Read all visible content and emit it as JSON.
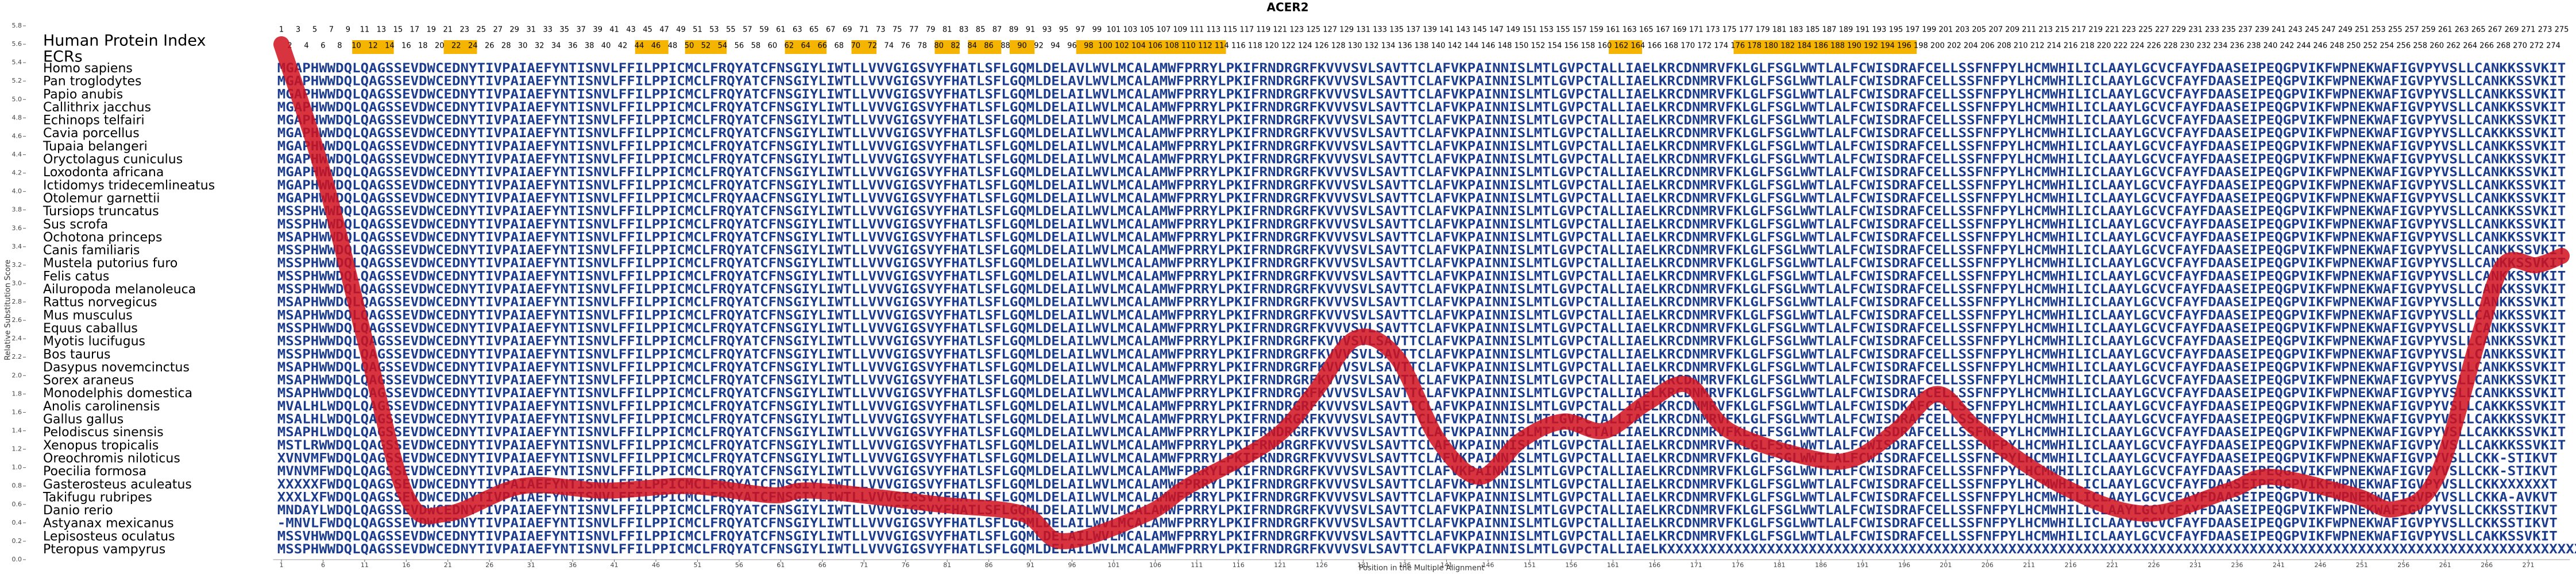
{
  "chart_data": {
    "type": "line",
    "title": "ACER2",
    "xlabel": "Position in the Multiple Alignment",
    "ylabel": "Relative Substitution Score",
    "index_label": "Human Protein Index",
    "ecr_label": "ECRs",
    "color": "#d0101e",
    "sequence_color": "#1c3c8e",
    "ecr_color": "#f5b400",
    "xlim": [
      1,
      275
    ],
    "ylim": [
      0,
      5.8
    ],
    "xticks": [
      1,
      6,
      11,
      16,
      21,
      26,
      31,
      36,
      41,
      46,
      51,
      56,
      61,
      66,
      71,
      76,
      81,
      86,
      91,
      96,
      101,
      106,
      111,
      116,
      121,
      126,
      131,
      136,
      141,
      146,
      151,
      156,
      161,
      166,
      171,
      176,
      181,
      186,
      191,
      196,
      201,
      206,
      211,
      216,
      221,
      226,
      231,
      236,
      241,
      246,
      251,
      256,
      261,
      266,
      271
    ],
    "yticks": [
      {
        "value": 0,
        "label": "0.0"
      },
      0.2,
      0.4,
      0.6,
      0.8,
      {
        "value": 1,
        "label": "1.0"
      },
      1.2,
      1.4,
      1.6,
      1.8,
      {
        "value": 2,
        "label": "2.0"
      },
      2.2,
      2.4,
      2.6,
      2.8,
      {
        "value": 3,
        "label": "3.0"
      },
      3.2,
      3.4,
      3.6,
      3.8,
      {
        "value": 4,
        "label": "4.0"
      },
      4.2,
      4.4,
      4.6,
      4.8,
      {
        "value": 5,
        "label": "5.0"
      },
      5.2,
      5.4,
      5.6,
      5.8
    ],
    "column_numbers": [
      1,
      2,
      3,
      4,
      5,
      6,
      7,
      8,
      9,
      10,
      11,
      12,
      13,
      14,
      15,
      16,
      17,
      18,
      19,
      20,
      21,
      22,
      23,
      24,
      25,
      26,
      27,
      28,
      29,
      30,
      31,
      32,
      33,
      34,
      35,
      36,
      37,
      38,
      39,
      40,
      41,
      42,
      43,
      44,
      45,
      46,
      47,
      48,
      49,
      50,
      51,
      52,
      53,
      54,
      55,
      56,
      57,
      58,
      59,
      60,
      61,
      62,
      63,
      64,
      65,
      66,
      67,
      68,
      69,
      70,
      71,
      72,
      73,
      74,
      75,
      76,
      77,
      78,
      79,
      80,
      81,
      82,
      83,
      84,
      85,
      86,
      87,
      88,
      89,
      90,
      91,
      92,
      93,
      94,
      95,
      96,
      97,
      98,
      99,
      100,
      101,
      102,
      103,
      104,
      105,
      106,
      107,
      108,
      109,
      110,
      111,
      112,
      113,
      114,
      115,
      116,
      117,
      118,
      119,
      120,
      121,
      122,
      123,
      124,
      125,
      126,
      127,
      128,
      129,
      130,
      131,
      132,
      133,
      134,
      135,
      136,
      137,
      138,
      139,
      140,
      141,
      142,
      143,
      144,
      145,
      146,
      147,
      148,
      149,
      150,
      151,
      152,
      153,
      154,
      155,
      156,
      157,
      158,
      159,
      160,
      161,
      162,
      163,
      164,
      165,
      166,
      167,
      168,
      169,
      170,
      171,
      172,
      173,
      174,
      175,
      176,
      177,
      178,
      179,
      180,
      181,
      182,
      183,
      184,
      185,
      186,
      187,
      188,
      189,
      190,
      191,
      192,
      193,
      194,
      195,
      196,
      197,
      198,
      199,
      200,
      201,
      202,
      203,
      204,
      205,
      206,
      207,
      208,
      209,
      210,
      211,
      212,
      213,
      214,
      215,
      216,
      217,
      218,
      219,
      220,
      221,
      222,
      223,
      224,
      225,
      226,
      227,
      228,
      229,
      230,
      231,
      232,
      233,
      234,
      235,
      236,
      237,
      238,
      239,
      240,
      241,
      242,
      243,
      244,
      245,
      246,
      247,
      248,
      249,
      250,
      251,
      252,
      253,
      254,
      255,
      256,
      257,
      258,
      259,
      260,
      261,
      262,
      263,
      264,
      265,
      266,
      267,
      268,
      269,
      270,
      271,
      272,
      273,
      274,
      275
    ],
    "ecrs": [
      {
        "start": 10,
        "end": 14
      },
      {
        "start": 21,
        "end": 24
      },
      {
        "start": 44,
        "end": 47
      },
      {
        "start": 50,
        "end": 54
      },
      {
        "start": 62,
        "end": 66
      },
      {
        "start": 70,
        "end": 72
      },
      {
        "start": 80,
        "end": 82
      },
      {
        "start": 84,
        "end": 87
      },
      {
        "start": 89,
        "end": 91
      },
      {
        "start": 97,
        "end": 114
      },
      {
        "start": 161,
        "end": 164
      },
      {
        "start": 176,
        "end": 197
      }
    ],
    "x": [
      1,
      6,
      11,
      16,
      21,
      30,
      40,
      50,
      60,
      65,
      80,
      90,
      95,
      105,
      110,
      120,
      125,
      130,
      135,
      140,
      145,
      150,
      155,
      160,
      165,
      170,
      175,
      185,
      190,
      195,
      200,
      205,
      215,
      225,
      235,
      240,
      250,
      255,
      260,
      265,
      268,
      272,
      275
    ],
    "values": [
      5.6,
      4.2,
      2.4,
      0.7,
      0.5,
      0.8,
      0.75,
      0.8,
      0.7,
      0.75,
      0.6,
      0.5,
      0.2,
      0.5,
      0.8,
      1.3,
      1.8,
      2.4,
      2.2,
      1.3,
      0.9,
      1.3,
      1.5,
      1.4,
      1.7,
      1.9,
      1.4,
      1.1,
      1.1,
      1.4,
      1.8,
      1.4,
      0.8,
      0.5,
      0.75,
      0.9,
      0.7,
      0.55,
      0.9,
      2.4,
      3.2,
      3.2,
      3.3
    ],
    "rows": [
      {
        "name": "Homo sapiens",
        "sequence": "MGAPHWWDQLQAGSSEVDWCEDNYTIVPAIAEFYNTISNVLFFILPPICMCLFRQYATCFNSGIYLIWTLLVVVGIGSVYFHATLSFLGQMLDELAVLWVLMCALAMWFPRRYLPKIFRNDRGRFKVVVSVLSAVTTCLAFVKPAINNISLMTLGVPCTALLIAELKRCDNMRVFKLGLFSGLWWTLALFCWISDRAFCELLSSFNFPYLHCMWHILICLAAYLGCVCFAYFDAASEIPEQGPVIKFWPNEKWAFIGVPYVSLLCANKKSSVKIT"
      },
      {
        "name": "Pan troglodytes",
        "sequence": "MGAPHWWDQLQAGSSEVDWCEDNYTIVPAIAEFYNTISNVLFFILPPICMCLFRQYATCFNSGIYLIWTLLVVVGIGSVYFHATLSFLGQMLDELAVLWVLMCALAMWFPRRYLPKIFRNDRGRFKVVVSVLSAVTTCLAFVKPAINNISLMTLGVPCTALLIAELKRCDNMRVFKLGLFSGLWWTLALFCWISDRAFCELLSSFNFPYLHCMWHILICLAAYLGCVCFAYFDAASEIPEQGPVIKFWPNEKWAFIGVPYVSLLCANKKSSVKIT"
      },
      {
        "name": "Papio anubis",
        "sequence": "MGAPHWWDQLQAGSSEVDWCEDNYTIVPAIAEFYNTISNVLFFILPPICMCLFRQYATCFNSGIYLIWTLLVVVGIGSVYFHATLSFLGQMLDELAILWVLMCALAMWFPRRYLPKIFRNDRGRFKVVVSVLSAVTTCLAFVKPAINNISLMTLGVPCTALLIAELKRCDNMRVFKLGLFSGLWWTLALFCWISDRAFCELLSSFNFPYLHCMWHILICLAAYLGCVCFAYFDAASEIPEQGPVIKFWPNEKWAFIGVPYVSLLCANKKSSVKIT"
      },
      {
        "name": "Callithrix jacchus",
        "sequence": "MGAPHWWDQLQAGSSEVDWCEDNYTIVPAIAEFYNTISNVLFFILPPICMCLFRQYATCFNSGIYLIWTLLVVVGIGSVYFHATLSFLGQMLDELAILWVLMCALAMWFPRRYLPKIFRNDRGRFKVVVSVLSAVTTCLAFVKPAINNISLMTLGVPCTALLIAELKRCDNMRVFKLGLFSGLWWTLALFCWISDRAFCELLSSFNFPYLHCMWHILICLAAYLGCVCFAYFDAASEIPEQGPVIKFWPNEKWAFIGVPYVSLLCANKKSSVKIT"
      },
      {
        "name": "Echinops telfairi",
        "sequence": "MGAPHWWDQLQAGSSEVDWCEDNYTIVPAIAEFYNTISNVLFFILPPICMCLFRQYATCFNSGIYLIWTLLVVVGIGSVYFHATLSFLGQMLDELAILWVLMCALAMWFPRRYLPKIFRNDRGRFKVVVSVLSAVTTCLAFVKPAINNISLMTLGVPCTALLIAELKRCDNMRVFKLGLFSGLWWTLALFCWISDRAFCELLSSFNFPYLHCMWHILICLAAYLGCVCFAYFDAASEIPEQGPVIKFWPNEKWAFIGVPYVSLLCANKKSSVKIT"
      },
      {
        "name": "Cavia porcellus",
        "sequence": "MGAPHWWDQLQAGSSEVDWCEDNYTIVPAIAEFYNTISNVLFFILPPICMCLFRQYATCFNSGIYLIWTLLVVVGIGSVYFHATLSFLGQMLDELAILWVLMCALAMWFPRRYLPKIFRNDRGRFKVVVSVLSAVTTCLAFVKPAINNISLMTLGVPCTALLIAELKRCDNMRVFKLGLFSGLWWTLALFCWISDRAFCELLSSFNFPYLHCMWHILICLAAYLGCVCFAYFDAASEIPEQGPVIKFWPNEKWAFIGVPYVSLLCAKKKSSVKIT"
      },
      {
        "name": "Tupaia belangeri",
        "sequence": "MGAPHWWDQLQAGSSEVDWCEDNYTIVPAIAEFYNTISNVLFFILPPICMCLFRQYATCFNSGIYLIWTLLVVVGIGSVYFHATLSFLGQMLDELAILWVLMCALAMWFPRRYLPKIFRNDRGRFKVVVSVLSAVTTCLAFVKPAINNISLMTLGVPCTALLIAELKRCDNMRVFKLGLFSGLWWTLALFCWISDRAFCELLSSFNFPYLHCMWHILICLAAYLGCVCFAYFDAASEIPEQGPVIKFWPNEKWAFIGVPYVSLLCANKKSSVKIT"
      },
      {
        "name": "Oryctolagus cuniculus",
        "sequence": "MGAPHWWDQLQAGSSEVDWCEDNYTIVPAIAEFYNTISNVLFFILPPICMCLFRQYATCFNSGIYLIWTLLVVVGIGSVYFHATLSFLGQMLDELAILWVLMCALAMWFPRRYLPKIFRNDRGRFKVVVSVLSAVTTCLAFVKPAINNISLMTLGVPCTALLIAELKRCDNMRVFKLGLFSGLWWTLALFCWISDRAFCELLSSFNFPYLHCMWHILICLAAYLGCVCFAYFDAASEIPEQGPVIKFWPNEKWAFIGVPYVSLLCANKKSSVKIT"
      },
      {
        "name": "Loxodonta africana",
        "sequence": "MGAPHWWDQLQAGSSEVDWCEDNYTIVPAIAEFYNTISNVLFFILPPICMCLFRQYATCFNSGIYLIWTLLVVVGIGSVYFHATLSFLGQMLDELAILWVLMCALAMWFPRRYLPKIFRNDRGRFKVVVSVLSAVTTCLAFVKPAINNISLMTLGVPCTALLIAELKRCDNMRVFKLGLFSGLWWTLALFCWISDRAFCELLSSFNFPYLHCMWHILICLAAYLGCVCFAYFDAASEIPEQGPVIKFWPNEKWAFIGVPYVSLLCANKKSSVKIT"
      },
      {
        "name": "Ictidomys tridecemlineatus",
        "sequence": "MGAPHWWDQLQAGSSEVDWCEDNYTIVPAIAEFYNTISNVLFFILPPICMCLFRQYATCFNSGIYLIWTLLVVVGIGSVYFHATLSFLGQMLDELAILWVLMCALAMWFPRRYLPKIFRNDRGRFKVVVSVLSAVTTCLAFVKPAINNISLMTLGVPCTALLIAELKRCDNMRVFKLGLFSGLWWTLALFCWISDRAFCELLSSFNFPYLHCMWHILICLAAYLGCVCFAYFDAASEIPEQGPVIKFWPNEKWAFIGVPYVSLLCANKKSSVKIT"
      },
      {
        "name": "Otolemur garnettii",
        "sequence": "MGAPHWWDQLQAGSSEVDWCEDNYTIVPAIAEFYNTISNVLFFILPPICMCLFRQYAACFNSGIYLIWTLLVVVGIGSVYFHATLSFLGQMLDELAILWVLMCALAMWFPRRYLPKIFRNDRGRFKVVVSVLSAVTTCLAFVKPAINNISLMTLGVPCTALLIAELKRCDNMRVFKLGLFSGLWWTLALFCWISDRAFCELLSSFNFPYLHCMWHILICLAAYLGCVCFAYFDAASEIPEQGPVIKFWPNEKWAFIGVPYVSLLCANKKSSVKIT"
      },
      {
        "name": "Tursiops truncatus",
        "sequence": "MSSPHWWDQLQAGSSEVDWCEDNYTIVPAIAEFYNTISNVLFFILPPICMCLFRQYATCFNSGIYLIWTLLVVVGIGSVYFHATLSFLGQMLDELAILWVLMCALAMWFPRRYLPKIFRNDRGRFKVVVSVLSAVTTCLAFVKPAINNISLMTLGVPCTALLIAELKRCDNMRVFKLGLFSGLWWTLALFCWISDRAFCELLSSFNFPYLHCMWHILICLAAYLGCVCFAYFDAASEIPEQGPVIKFWPNEKWAFIGVPYVSLLCANKKSSVKIT"
      },
      {
        "name": "Sus scrofa",
        "sequence": "MSSPHWWDQLQAGSSEVDWCEDNYTIVPAIAEFYNTISNVLFFILPPICMCLFRQYATCFNSGIYLIWTLLVVVGIGSVYFHATLSFLGQMLDELAILWVLMCALAMWFPRRYLPKIFRNDRGRFKVVVSVLSAVTTCLAFVKPAINNISLMTLGVPCTALLIAELKRCDNMRVFKLGLFSGLWWTLALFCWISDRAFCELLSSFNFPYLHCMWHILICLAAYLGCVCFAYFDAASEIPEQGPVIKFWPNEKWAFIGVPYVSLLCANKKSSVKIT"
      },
      {
        "name": "Ochotona princeps",
        "sequence": "MSAPHWWDQLQAGSSEVDWCEDNYTIVPAIAEFYNTISNVLFFILPPICMCLFRQYATCFNSGIYLIWTLLVVVGIGSVYFHATLSFLGQMLDELAILWVLMCALAMWFPRRYLPKIFRNDRGRFKVVVSVLSAVTTCLAFVKPAINNISLMTLGVPCTALLIAELKRCDNMRVFKLGLFSGLWWTLALFCWISDRAFCELLSSFNFPYLHCMWHILICLAAYLGCVCFAYFDAASEIPEQGPVIKFWPNEKWAFIGVPYVSLLCANKKSSVKIT"
      },
      {
        "name": "Canis familiaris",
        "sequence": "MSSPHWWDQLQAGSSEVDWCEDNYTIVPAIAEFYNTISNVLFFILPPICMCLFRQYATCFNSGIYLIWTLLVVVGIGSVYFHATLSFLGQMLDELAILWVLMCALAMWFPRRYLPKIFRNDRGRFKVVVSVLSAVTTCLAFVKPAINNISLMTLGVPCTALLIAELKRCDNMRVFKLGLFSGLWWTLALFCWISDRAFCELLSSFNFPYLHCMWHILICLAAYLGCVCFAYFDAASEIPEQGPVIKFWPNEKWAFIGVPYVSLLCANKKSSVKIT"
      },
      {
        "name": "Mustela putorius furo",
        "sequence": "MSSPHWWDQLQAGSSEVDWCEDNYTIVPAIAEFYNTISNVLFFILPPICMCLFRQYATCFNSGIYLIWTLLVVVGIGSVYFHATLSFLGQMLDELAILWVLMCALAMWFPRRYLPKIFRNDRGRFKVVVSVLSAVTTCLAFVKPAINNISLMTLGVPCTALLIAELKRCDNMRVFKLGLFSGLWWTLALFCWISDRAFCELLSSFNFPYLHCMWHILICLAAYLGCVCFAYFDAASEIPEQGPVIKFWPNEKWAFIGVPYVSLLCANKKSSVKIT"
      },
      {
        "name": "Felis catus",
        "sequence": "MSSPHWWDQLQAGSSEVDWCEDNYTIVPAIAEFYNTISNVLFFILPPICMCLFRQYATCFNSGIYLIWTLLVVVGIGSVYFHATLSFLGQMLDELAILWVLMCALAMWFPRRYLPKIFRNDRGRFKVVVSVLSAVTTCLAFVKPAINNISLMTLGVPCTALLIAELKRCDNMRVFKLGLFSGLWWTLALFCWISDRAFCELLSSFNFPYLHCMWHILICLAAYLGCVCFAYFDAASEIPEQGPVIKFWPNEKWAFIGVPYVSLLCANKKSSVKIT"
      },
      {
        "name": "Ailuropoda melanoleuca",
        "sequence": "MSSPHWWDQLQAGSSEVDWCEDNYTIVPAIAEFYNTISNVLFFILPPICMCLFRQYATCFNSGIYLIWTLLVVVGIGSVYFHATLSFLGQMLDELAILWVLMCALAMWFPRRYLPKIFRNDRGRFKVVVSVLSAVTTCLAFVKPAINNISLMTLGVPCTALLIAELKRCDNMRVFKLGLFSGLWWTLALFCWISDRAFCELLSSFNFPYLHCMWHILICLAAYLGCVCFAYFDAASEIPEQGPVIKFWPNEKWAFIGVPYVSLLCANKKSSVKIT"
      },
      {
        "name": "Rattus norvegicus",
        "sequence": "MSAPHWWDQLQAGSSEVDWCEDNYTIVPAIAEFYNTISNVLFFILPPICMCLFRQYATCFNSGIYLIWTLLVVVGIGSVYFHATLSFLGQMLDELAILWVLMCALAMWFPRRYLPKIFRNDRGRFKVVVSVLSAVTTCLAFVKPAINNISLMTLGVPCTALLIAELKRCDNMRVFKLGLFSGLWWTLALFCWISDRAFCELLSSFNFPYLHCMWHILICLAAYLGCVCFAYFDAASEIPEQGPVIKFWPNEKWAFIGVPYVSLLCANKKSSVKIT"
      },
      {
        "name": "Mus musculus",
        "sequence": "MSAPHWWDQLQAGSSEVDWCEDNYTIVPAIAEFYNTISNVLFFILPPICMCLFRQYATCFNSGIYLIWTLLVVVGIGSVYFHATLSFLGQMLDELAILWVLMCALAMWFPRRYLPKIFRNDRGRFKVVVSVLSAVTTCLAFVKPAINNISLMTLGVPCTALLIAELKRCDNMRVFKLGLFSGLWWTLALFCWISDRAFCELLSSFNFPYLHCMWHILICLAAYLGCVCFAYFDAASEIPEQGPVIKFWPNEKWAFIGVPYVSLLCANKKSSVKIT"
      },
      {
        "name": "Equus caballus",
        "sequence": "MSSPHWWDQLQAGSSEVDWCEDNYTIVPAIAEFYNTISNVLFFILPPICMCLFRQYATCFNSGIYLIWTLLVVVGIGSVYFHATLSFLGQMLDELAILWVLMCALAMWFPRRYLPKIFRNDRGRFKVVVSVLSAVTTCLAFVKPAINNISLMTLGVPCTALLIAELKRCDNMRVFKLGLFSGLWWTLALFCWISDRAFCELLSSFNFPYLHCMWHILICLAAYLGCVCFAYFDAASEIPEQGPVIKFWPNEKWAFIGVPYVSLLCANKKSSVKIT"
      },
      {
        "name": "Myotis lucifugus",
        "sequence": "MSSPHWWDQLQAGSSEVDWCEDNYTIVPAIAEFYNTISNVLFFILPPICMCLFRQYATCFNSGIYLIWTLLVVVGIGSVYFHATLSFLGQMLDELAILWVLMCALAMWFPRRYLPKIFRNDRGRFKVVVSVLSAVTTCLAFVKPAINNISLMTLGVPCTALLIAELKRCDNMRVFKLGLFSGLWWTLALFCWISDRAFCELLSSFNFPYLHCMWHILICLAAYLGCVCFAYFDAASEIPEQGPVIKFWPNEKWAFIGVPYVSLLCANKKSSVKIT"
      },
      {
        "name": "Bos taurus",
        "sequence": "MSSPHWWDQLQAGSSEVDWCEDNYTIVPAIAEFYNTISNVLFFILPPICMCLFRQYATCFNSGIYLIWTLLVVVGIGSVYFHATLSFLGQMLDELAILWVLMCALAMWFPRRYLPKIFRNDRGRFKVVVSVLSAVTTCLAFVKPAINNISLMTLGVPCTALLIAELKRCDNMRVFKLGLFSGLWWTLALFCWISDRAFCELLSSFNFPYLHCMWHILICLAAYLGCVCFAYFDAASEIPEQGPVIKFWPNEKWAFIGVPYVSLLCANKKSSVKIT"
      },
      {
        "name": "Dasypus novemcinctus",
        "sequence": "MSAPHWWDQLQAGSSEVDWCEDNYTIVPAIAEFYNTISNVLFFILPPICMCLFRQYATCFNSGIYLIWTLLVVVGIGSVYFHATLSFLGQMLDELAILWVLMCALAMWFPRRYLPKIFRNDRGRFKVVVSVLSAVTTCLAFVKPAINNISLMTLGVPCTALLIAELKRCDNMRVFKLGLFSGLWWTLALFCWISDRAFCELLSSFNFPYLHCMWHILICLAAYLGCVCFAYFDAASEIPEQGPVIKFWPNEKWAFIGVPYVSLLCANKKSSVKIT"
      },
      {
        "name": "Sorex araneus",
        "sequence": "MSAPHWWDQLQAGSSEVDWCEDNYTIVPAIAEFYNTISNVLFFILPPICMCLFRQYATCFNSGIYLIWTLLVVVGIGSVYFHATLSFLGQMLDELAILWVLMCALAMWFPRRYLPKIFRNDRGRFKVVVSVLSAVTTCLAFVKPAINNISLMTLGVPCTALLIAELKRCDNMRVFKLGLFSGLWWTLALFCWISDRAFCELLSSFNFPYLHCMWHILICLAAYLGCVCFAYFDAASEIPEQGPVIKFWPNEKWAFIGVPYVSLLCANKKSSVKIT"
      },
      {
        "name": "Monodelphis domestica",
        "sequence": "MSAPHWWDQLQAGSSEVDWCEDNYTIVPAIAEFYNTISNVLFFILPPICMCLFRQYATCFNSGIYLIWTLLVVVGIGSVYFHATLSFLGQMLDELAILWVLMCALAMWFPRRYLPKIFRNDRGRFKVVVSVLSAVTTCLAFVKPAINNISLMTLGVPCTALLIAELKRCDNMRVFKLGLFSGLWWTLALFCWISDRAFCELLSSFNFPYLHCMWHILICLAAYLGCVCFAYFDAASEIPEQGPVIKFWPNEKWAFIGVPYVSLLCANKKSSVKIT"
      },
      {
        "name": "Anolis carolinensis",
        "sequence": "MVALHLWDQLQAGSSEVDWCEDNYTIVPAIAEFYNTISNVLFFILPPICMCLFRQYATCFNSGIYLIWTLLVVVGIGSVYFHATLSFLGQMLDELAILWVLMCALAMWFPRRYLPKIFRNDRGRFKVVVSVLSAVTTCLAFVKPAINNISLMTLGVPCTALLIAELKRCDNMRVFKLGLFSGLWWTLALFCWISDKAFCELLSSFNFPYLHCMWHILICLAAYLGCVCFAYFDAASEIPEQGPVIKFWPNEKWAFIGVPYVSLLCAKKKSSVKIT"
      },
      {
        "name": "Gallus gallus",
        "sequence": "MSALHLWDQLQAGSSEVDWCEDNYTIVPAIAEFYNTISNVLFFILPPICMCLFRQYATCFNSGIYLIWTLLVVVGIGSVYFHATLSFLGQMLDELAILWVLMCALAMWFPRRYLPKIFRNDRGRFKVVVSVLSAVTTCLAFVKPAINNISLMTLGVPCTALLIAELKRCDNMRVFKLGLFSGLWWTLALFCWISDRAFCELLSSFNFPYLHCMWHILICLAAYLGCVCFAYFDAASEIPEQGPVIKFWPNEKWAFIGVPYVSLLCAKKKSSVKIT"
      },
      {
        "name": "Pelodiscus sinensis",
        "sequence": "MSAPHLWDQLQAGSSEVDWCEDNYTIVPAIAEFYNTISNVLFFILPPICMCLFRQYATCFNSGIYLIWTLLVVVGIGSVYFHATLSFLGQMLDELAILWVLMCALAMWFPRRYLPKIFRNDRGRFKVVVSVLSAVTTCLAFVKPAINNISLMTLGVPCTALLIAELKRCDNMRVFKLGLFSGLWWTLALFCWISDRAFCELLSSFNFPYLHCMWHILICLAAYLGCVCFAYFDAASEIPEQGPVIKFWPNEKWAFIGVPYVSLLCAKKKSSVKIT"
      },
      {
        "name": "Xenopus tropicalis",
        "sequence": "MSTLRWWDQLQAGSSEVDWCEDNYTIVPAIAEFYNTISNVLFFILPPICMCLFRQYATCFNSGIYLIWTLLVVVGIGSVYFHATLSFLGQMLDELAILWVLMCALAMWFPRRYLPKIFRNDRGRFKVVVSVLSAVTTCLAFVKPAINNISLMTLGVPCTALLIAELKRCDNMRVFKLGLFSGLWWTLALFCWISDRAFCELLSSFNFPYLHCMWHILICLAAYLGCVCFAYFDAASEIPEQGPVIKFWPNEKWAFIGVPYVSLLCAKKKSSVKIT"
      },
      {
        "name": "Oreochromis niloticus",
        "sequence": "XVNVMFWDQLQAGSSEVDWCEDNYTIVPAIAEFYNTISNVLFFILPPICMCLFRQYATCFNSGIYLIWTLLVVVGIGSVYFHATLSFLGQMLDELAILWVLMCALAMWFPRRYLPKIFRNDRGRFKVVVSVLSAVTTCLAFVKPAINNISLMTLGVPCTALLIAELKRCDNMRVFKLGLFSGLWWTLALFCWISDRAFCELLSSFNFPYLHCMWHILICLAAYLGCVCFAYFDAASEIPEQGPVIKFWPNEKWAFIGVPYVSLLCKK-STIKVT"
      },
      {
        "name": "Poecilia formosa",
        "sequence": "MVNVMFWDQLQAGSSEVDWCEDNYTIVPAIAEFYNTISNVLFFILPPICMCLFRQYATCFNSGIYLIWTLLVVVGIGSVYFHATLSFLGQMLDELAILWVLMCALAMWFPRRYLPKIFRNDRGRFKVVVSVLSAVTTCLAFVKPAINNISLMTLGVPCTALLIAELKRCDNMRVFKLGLFSGLWWTLALFCWISDRAFCELLSSFNFPYLHCMWHILICLAAYLGCVCFAYFDAASEIPEQGPVIKFWPNEKWAFIGVPYVSLLCKK-STIKVT"
      },
      {
        "name": "Gasterosteus aculeatus",
        "sequence": "XXXXXFWDQLQAGSSEVDWCEDNYTIVPAIAEFYNTISNVLFFILPPICMCLFRQYATCFNSGIYLIWTLLVVVGIGSVYFHATLSFLGQMLDELAILWVLMCALAMWFPRRYLPKIFRNDRGRFKVVVSVLSAVTTCLAFVKPAINNISLMTLGVPCTALLIAELKRCDNMRVFKLGLFSGLWWTLALFCWISDRAFCELLSSFNFPYLHCMWHILICLAAYLGCVCFAYFDAASEIPEQGPVIKFWPNEKWAFIGVPYVSLLCKKXXXXXXT"
      },
      {
        "name": "Takifugu rubripes",
        "sequence": "XXXLXFWDQLQAGSSEVDWCEDNYTIVPAIAEFYNTISNVLFFILPPICMCLFRQYATCFNSGIYLIWTLLVVVGIGSVYFHATLSFLGQMLDELAILWVLMCALAMWFPRRYLPKIFRNDRGRFKVVVSVLSAVTTCLAFVKPAINNISLMTLGVPCTALLIAELKRCDNMRVFKLGLFSGLWWTLALFCWISDRAFCELLSSFNFPYLHCMWHILICLAAYLGCVCFAYFDAASEIPEQGPVIKFWPNEKWAFIGVPYVSLLCKKA-AVKVT"
      },
      {
        "name": "Danio rerio",
        "sequence": "MNDAYLWDQLQAGSSEVDWCEDNYTIVPAIAEFYNTISNVLFFILPPICMCLFRQYATCFNSGIYLIWTLLVVVGIGSVYFHATLSFLGQMLDELAILWVLMCALAMWFPRRYLPKIFRNDRGRFKVVVSVLSAVTTCLAFVKPAINNISLMTLGVPCTALLIAELKRCDNMRVFKLGLFSGLWWTLALFCWISDRAFCELLSSFNFPYLHCMWHILICLAAYLGCVCFAYFDAASEIPEQGPVIKFWPNEKWAFIGVPYVSLLCKKSSTIKVT"
      },
      {
        "name": "Astyanax mexicanus",
        "sequence": "-MNVLFWDQLQAGSSEVDWCEDNYTIVPAIAEFYNTISNVLFFILPPICMCLFRQYATCFNSGIYLIWTLLVVVGIGSVYFHATLSFLGQMLDELAILWVLMCALAMWFPRRYLPKIFRNDRGRFKVVVSVLSAVTTCLAFVKPAINNISLMTLGVPCTALLIAELKRCDNMRVFKLGLFSGLWWTLALFCWISDRAFCELLSSFNFPYLHCMWHILICLAAYLGCVCFAYFDAASEIPEQGPVIKFWPNEKWAFIGVPYVSLLCKKSSTIKVT"
      },
      {
        "name": "Lepisosteus oculatus",
        "sequence": "MSSVHWWDQLQAGSSEVDWCEDNYTIVPAIAEFYNTISNVLFFILPPICMCLFRQYATCFNSGIYLIWTLLVVVGIGSVYFHATLSFLGQMLDELAILWVLMCALAMWFPRRYLPKIFRNDRGRFKVVVSVLSAVTTCLAFVKPAINNISLMTLGVPCTALLIAELKRCDNMRVFKLGLFSGLWWTLALFCWISDRAFCELLSSFNFPYLHCMWHILICLAAYLGCVCFAYFDAASEIPEQGPVIKFWPNEKWAFIGVPYVSLLCAKKSSVKIT"
      },
      {
        "name": "Pteropus vampyrus",
        "sequence": "MSSPHWWDQLQAGSSEVDWCEDNYTIVPAIAEFYNTISNVLFFILPPICMCLFRQYATCFNSGIYLIWTLLVVVGIGSVYFHATLSFLGQMLDELAILWVLMCALAMWFPRRYLPKIFRNDRGRFKVVVSVLSAVTTCLAFVKPAINNISLMTLGVPCTALLIAELKXXXXXXXXXXXXXXXXXXXXXXXXXXXXXXXXXXXXXXXXXXXXXXXXXXXXXXXXXXXXXXXXXXXXXXXXXXXXXXXXXXXXXXXXXXXXXXXXXXXXXXXXXXXXXXXXXX"
      }
    ]
  }
}
